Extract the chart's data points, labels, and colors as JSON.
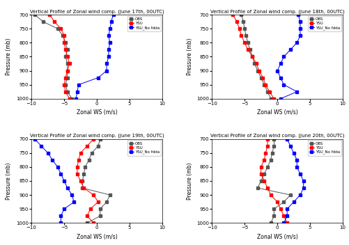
{
  "titles": [
    "Vertical Profile of Zonal wind comp. (June 17th, 00UTC)",
    "Vertical Profile of Zonal wind comp. (June 18th, 00UTC)",
    "Vertical Profile of Zonal wind comp. (June 19th, 00UTC)",
    "Vertical Profile of Zonal wind comp. (June 20th, 00UTC)"
  ],
  "ylabel": "Pressure (mb)",
  "xlabel": "Zonal WS (m/s)",
  "pressure_levels": [
    700,
    725,
    750,
    775,
    800,
    825,
    850,
    875,
    900,
    925,
    950,
    975,
    1000
  ],
  "xlim": [
    -10,
    10
  ],
  "ylim": [
    1000,
    700
  ],
  "yticks": [
    700,
    750,
    800,
    850,
    900,
    950,
    1000
  ],
  "xticks": [
    -10,
    -5,
    0,
    5,
    10
  ],
  "legend_labels": [
    "OBS",
    "YSU",
    "YSU_No fdda"
  ],
  "obs_color": "#555555",
  "ysu_color": "red",
  "ysu_nofdda_color": "blue",
  "obs_17": [
    -9.5,
    null,
    -6.0,
    null,
    -4.8,
    null,
    -4.8,
    null,
    -4.5,
    -4.5,
    -4.8,
    null,
    -3.8
  ],
  "ysu_17": [
    -7.2,
    null,
    -5.5,
    null,
    -5.0,
    null,
    -4.5,
    null,
    -4.5,
    -4.8,
    -5.0,
    null,
    -4.2
  ],
  "ysu_nofdda_17": [
    2.5,
    null,
    2.0,
    null,
    2.0,
    null,
    1.8,
    null,
    1.5,
    0.2,
    -2.8,
    null,
    -3.2
  ],
  "obs_18": [
    -5.5,
    null,
    -5.0,
    null,
    -4.5,
    null,
    -3.8,
    null,
    -3.0,
    -2.5,
    -2.0,
    null,
    -1.0
  ],
  "ysu_18": [
    -6.8,
    null,
    -5.8,
    null,
    -5.0,
    null,
    -3.8,
    null,
    -2.8,
    -2.2,
    -1.8,
    null,
    -0.5
  ],
  "ysu_nofdda_18": [
    3.2,
    null,
    3.5,
    null,
    3.0,
    null,
    1.0,
    null,
    0.0,
    0.5,
    1.0,
    null,
    0.5
  ],
  "obs_19": [
    0.5,
    null,
    -0.8,
    null,
    -1.8,
    null,
    -2.2,
    null,
    2.0,
    1.5,
    0.5,
    null,
    -1.5
  ],
  "ysu_19": [
    -0.5,
    null,
    -2.5,
    null,
    -3.0,
    null,
    -2.5,
    null,
    -0.5,
    0.2,
    -1.0,
    null,
    -0.5
  ],
  "ysu_nofdda_19": [
    -9.5,
    null,
    -7.5,
    null,
    -6.0,
    null,
    -5.0,
    null,
    -3.8,
    -3.5,
    -5.0,
    null,
    -5.5
  ],
  "obs_20": [
    -0.5,
    null,
    -0.8,
    null,
    -1.5,
    null,
    -2.5,
    null,
    2.0,
    1.0,
    -0.5,
    null,
    -1.0
  ],
  "ysu_20": [
    -1.5,
    null,
    -1.8,
    null,
    -2.5,
    null,
    -2.0,
    null,
    -1.0,
    0.0,
    0.5,
    null,
    1.5
  ],
  "ysu_nofdda_20": [
    1.5,
    null,
    2.5,
    null,
    3.0,
    null,
    4.0,
    null,
    3.5,
    2.5,
    1.5,
    null,
    1.0
  ],
  "obs_17_full": [
    -9.5,
    -8.2,
    -6.0,
    -5.2,
    -4.8,
    -4.5,
    -4.8,
    -4.5,
    -4.5,
    -4.5,
    -4.8,
    -4.5,
    -3.8
  ],
  "ysu_17_full": [
    -7.2,
    -6.5,
    -5.5,
    -5.0,
    -5.0,
    -4.8,
    -4.5,
    -4.2,
    -4.5,
    -4.8,
    -5.0,
    -4.8,
    -4.2
  ],
  "ysu_nofdda_17_full": [
    2.5,
    2.2,
    2.0,
    1.8,
    2.0,
    1.8,
    1.8,
    1.5,
    1.5,
    0.2,
    -2.8,
    -3.0,
    -3.2
  ],
  "obs_18_full": [
    -5.5,
    -5.2,
    -5.0,
    -4.8,
    -4.5,
    -4.2,
    -3.8,
    -3.5,
    -3.0,
    -2.5,
    -2.0,
    -1.5,
    -1.0
  ],
  "ysu_18_full": [
    -6.8,
    -6.2,
    -5.8,
    -5.5,
    -5.0,
    -4.5,
    -3.8,
    -3.2,
    -2.8,
    -2.2,
    -1.8,
    -1.2,
    -0.5
  ],
  "ysu_nofdda_18_full": [
    3.2,
    3.5,
    3.5,
    3.5,
    3.0,
    2.0,
    1.0,
    0.5,
    0.0,
    0.5,
    1.0,
    3.0,
    0.5
  ],
  "obs_19_full": [
    0.5,
    0.2,
    -0.8,
    -1.2,
    -1.8,
    -2.0,
    -2.2,
    -2.2,
    2.0,
    1.5,
    0.5,
    0.5,
    -1.5
  ],
  "ysu_19_full": [
    -0.5,
    -1.5,
    -2.5,
    -2.8,
    -3.0,
    -3.0,
    -2.5,
    -2.0,
    -0.5,
    0.2,
    -1.0,
    -1.5,
    -0.5
  ],
  "ysu_nofdda_19_full": [
    -9.5,
    -8.5,
    -7.5,
    -6.8,
    -6.0,
    -5.5,
    -5.0,
    -4.5,
    -3.8,
    -3.5,
    -5.0,
    -5.5,
    -5.5
  ],
  "obs_20_full": [
    -0.5,
    -0.5,
    -0.8,
    -1.0,
    -1.5,
    -2.0,
    -2.5,
    -3.0,
    2.0,
    1.0,
    -0.5,
    -0.5,
    -1.0
  ],
  "ysu_20_full": [
    -1.5,
    -1.5,
    -1.8,
    -2.0,
    -2.5,
    -2.5,
    -2.0,
    -1.5,
    -1.0,
    0.0,
    0.5,
    1.0,
    1.5
  ],
  "ysu_nofdda_20_full": [
    1.5,
    2.0,
    2.5,
    3.0,
    3.0,
    3.5,
    4.0,
    4.0,
    3.5,
    2.5,
    1.5,
    1.5,
    1.0
  ]
}
